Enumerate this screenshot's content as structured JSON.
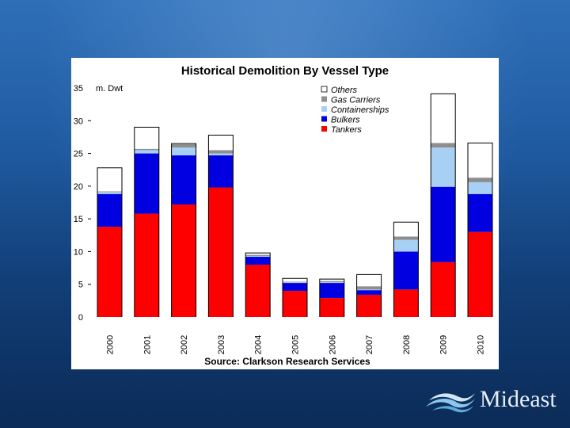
{
  "chart_data": {
    "type": "bar",
    "stacked": true,
    "title": "Historical Demolition By Vessel Type",
    "ylabel": "m. Dwt",
    "source": "Source: Clarkson Research Services",
    "ylim": [
      0,
      35
    ],
    "yticks": [
      0,
      5,
      10,
      15,
      20,
      25,
      30,
      35
    ],
    "categories": [
      "2000",
      "2001",
      "2002",
      "2003",
      "2004",
      "2005",
      "2006",
      "2007",
      "2008",
      "2009",
      "2010"
    ],
    "series": [
      {
        "name": "Tankers",
        "color": "#ff0000",
        "values": [
          13.8,
          15.8,
          17.2,
          19.8,
          8.0,
          4.0,
          2.9,
          3.4,
          4.2,
          8.4,
          13.0
        ]
      },
      {
        "name": "Bulkers",
        "color": "#0000e0",
        "values": [
          5.0,
          9.2,
          7.5,
          4.9,
          1.2,
          1.2,
          2.3,
          0.7,
          5.8,
          11.5,
          5.8
        ]
      },
      {
        "name": "Containerships",
        "color": "#a8d0f4",
        "values": [
          0.3,
          0.5,
          1.2,
          0.3,
          0.1,
          0.1,
          0.1,
          0.1,
          1.8,
          6.0,
          1.8
        ]
      },
      {
        "name": "Gas Carriers",
        "color": "#8e8e8e",
        "values": [
          0.1,
          0.2,
          0.5,
          0.5,
          0.2,
          0.1,
          0.2,
          0.5,
          0.5,
          0.7,
          0.7
        ]
      },
      {
        "name": "Others",
        "color": "#ffffff",
        "values": [
          3.6,
          3.3,
          0.1,
          2.3,
          0.3,
          0.5,
          0.3,
          1.8,
          2.2,
          7.5,
          5.3
        ]
      }
    ],
    "legend_order": [
      "Others",
      "Gas Carriers",
      "Containerships",
      "Bulkers",
      "Tankers"
    ],
    "legend_position": "top-right"
  },
  "logo": {
    "text": "Mideast"
  }
}
